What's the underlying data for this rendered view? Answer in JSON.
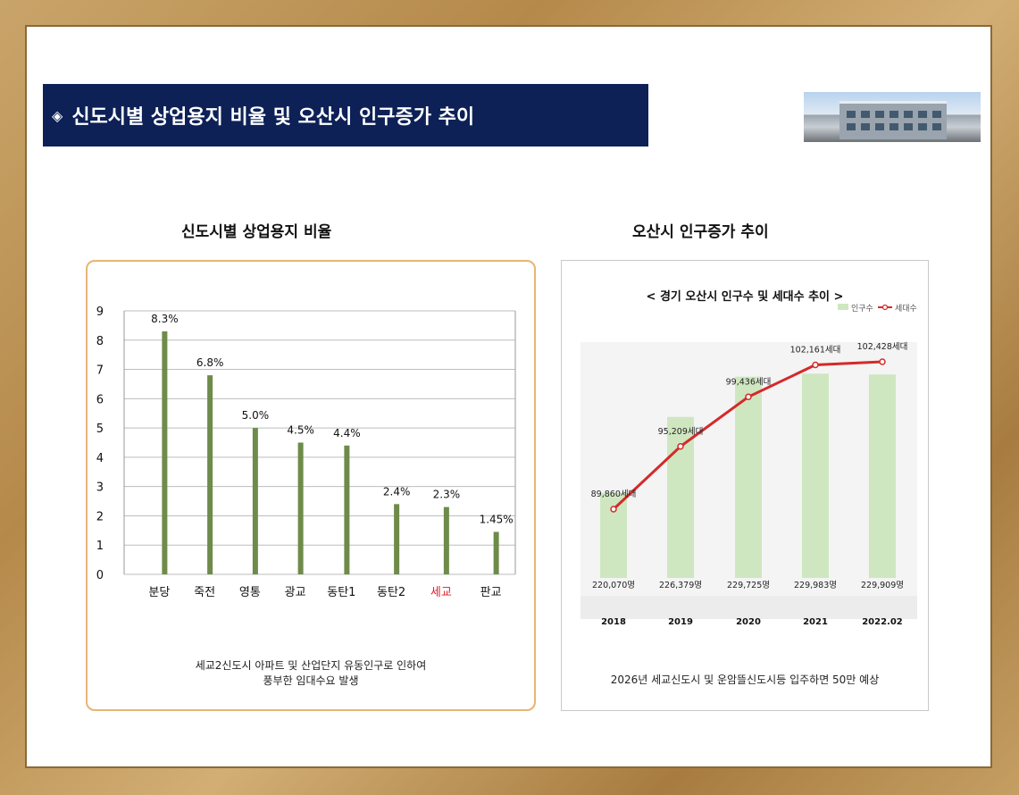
{
  "header": {
    "icon": "◈",
    "title": "신도시별 상업용지 비율 및 오산시 인구증가 추이"
  },
  "left": {
    "title": "신도시별 상업용지 비율",
    "caption_line1": "세교2신도시 아파트 및 산업단지 유동인구로 인하여",
    "caption_line2": "풍부한 임대수요 발생"
  },
  "right": {
    "title": "오산시 인구증가 추이",
    "caption": "2026년 세교신도시 및 운암뜰신도시등 입주하면 50만 예상"
  },
  "colors": {
    "banner": "#0d2157",
    "bar_green": "#6e8b4a",
    "highlight_red": "#d8202a",
    "pop_bar": "#cfe7c0",
    "line_red": "#d42a2a"
  },
  "chart_data": [
    {
      "type": "bar",
      "title": "",
      "categories": [
        "분당",
        "죽전",
        "영통",
        "광교",
        "동탄1",
        "동탄2",
        "세교",
        "판교"
      ],
      "values": [
        8.3,
        6.8,
        5.0,
        4.5,
        4.4,
        2.4,
        2.3,
        1.45
      ],
      "data_labels": [
        "8.3%",
        "6.8%",
        "5.0%",
        "4.5%",
        "4.4%",
        "2.4%",
        "2.3%",
        "1.45%"
      ],
      "highlight_category": "세교",
      "yticks": [
        "0",
        "1",
        "2",
        "3",
        "4",
        "5",
        "6",
        "7",
        "8",
        "9"
      ],
      "ylim": [
        0,
        9
      ],
      "grid": true
    },
    {
      "type": "bar+line",
      "title": "< 경기 오산시 인구수 및 세대수 추이 >",
      "categories": [
        "2018",
        "2019",
        "2020",
        "2021",
        "2022.02"
      ],
      "series": [
        {
          "name": "인구수",
          "values": [
            220070,
            226379,
            229725,
            229983,
            229909
          ],
          "labels": [
            "220,070명",
            "226,379명",
            "229,725명",
            "229,983명",
            "229,909명"
          ]
        },
        {
          "name": "세대수",
          "values": [
            89860,
            95209,
            99436,
            102161,
            102428
          ],
          "labels": [
            "89,860세대",
            "95,209세대",
            "99,436세대",
            "102,161세대",
            "102,428세대"
          ]
        }
      ],
      "legend": "top-right"
    }
  ]
}
